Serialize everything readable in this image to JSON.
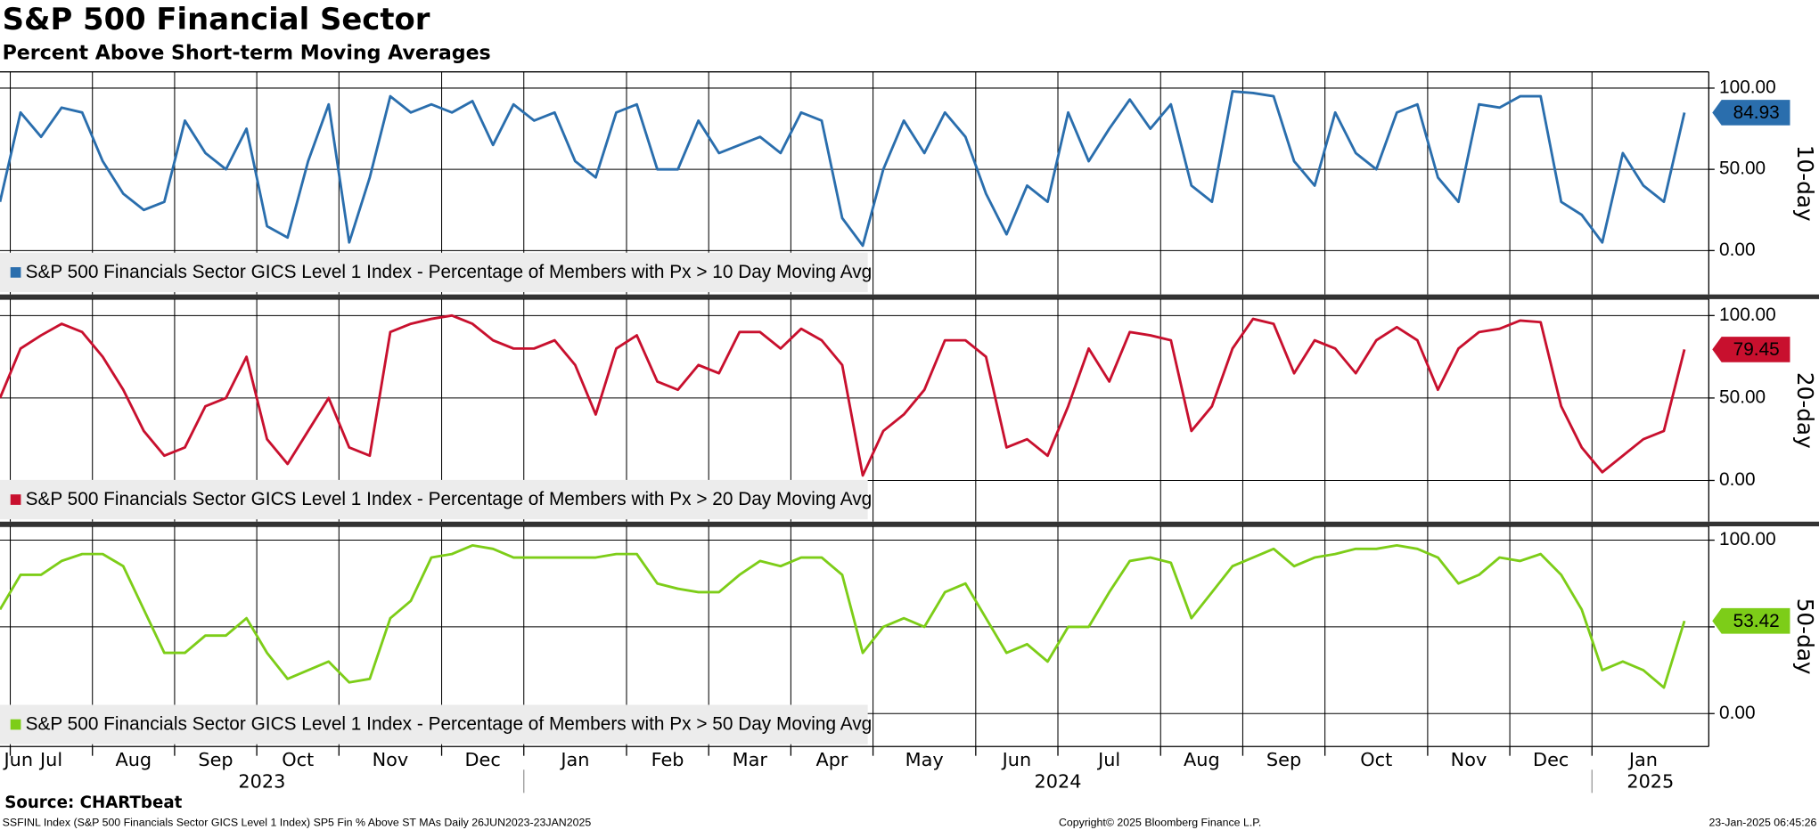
{
  "title": "S&P 500 Financial Sector",
  "subtitle": "Percent Above Short-term Moving Averages",
  "source": "Source: CHARTbeat",
  "footer": {
    "left": "SSFINL Index (S&P 500 Financials Sector GICS Level 1 Index) SP5 Fin % Above ST MAs  Daily 26JUN2023-23JAN2025",
    "center": "Copyright© 2025 Bloomberg Finance L.P.",
    "right": "23-Jan-2025 06:45:26"
  },
  "chart_data": [
    {
      "type": "line",
      "axis_title": "10-day",
      "ylim": [
        -27,
        110
      ],
      "yticks": [
        {
          "value": 0,
          "label": "0.00"
        },
        {
          "value": 50,
          "label": "50.00"
        },
        {
          "value": 100,
          "label": "100.00"
        }
      ],
      "grid": true,
      "tag_text_color": "#ffffff",
      "categories": [
        "Jun",
        "Jul",
        "Jul",
        "Jul",
        "Jul",
        "Aug",
        "Aug",
        "Aug",
        "Aug",
        "Sep",
        "Sep",
        "Sep",
        "Sep",
        "Oct",
        "Oct",
        "Oct",
        "Oct",
        "Nov",
        "Nov",
        "Nov",
        "Nov",
        "Nov",
        "Dec",
        "Dec",
        "Dec",
        "Dec",
        "Jan",
        "Jan",
        "Jan",
        "Jan",
        "Jan",
        "Feb",
        "Feb",
        "Feb",
        "Feb",
        "Mar",
        "Mar",
        "Mar",
        "Mar",
        "Apr",
        "Apr",
        "Apr",
        "Apr",
        "May",
        "May",
        "May",
        "May",
        "May",
        "Jun",
        "Jun",
        "Jun",
        "Jun",
        "Jul",
        "Jul",
        "Jul",
        "Jul",
        "Jul",
        "Aug",
        "Aug",
        "Aug",
        "Aug",
        "Sep",
        "Sep",
        "Sep",
        "Sep",
        "Oct",
        "Oct",
        "Oct",
        "Oct",
        "Oct",
        "Nov",
        "Nov",
        "Nov",
        "Nov",
        "Dec",
        "Dec",
        "Dec",
        "Dec",
        "Jan",
        "Jan",
        "Jan",
        "Jan",
        "Jan"
      ],
      "series": [
        {
          "name": "S&P 500 Financials Sector GICS Level 1 Index - Percentage of Members with Px > 10 Day Moving Avg",
          "color": "#2a6ead",
          "values": [
            30,
            85,
            70,
            88,
            85,
            55,
            35,
            25,
            30,
            80,
            60,
            50,
            75,
            15,
            8,
            55,
            90,
            5,
            45,
            95,
            85,
            90,
            85,
            92,
            65,
            90,
            80,
            85,
            55,
            45,
            85,
            90,
            50,
            50,
            80,
            60,
            65,
            70,
            60,
            85,
            80,
            20,
            3,
            50,
            80,
            60,
            85,
            70,
            35,
            10,
            40,
            30,
            85,
            55,
            75,
            93,
            75,
            90,
            40,
            30,
            98,
            97,
            95,
            55,
            40,
            85,
            60,
            50,
            85,
            90,
            45,
            30,
            90,
            88,
            95,
            95,
            30,
            22,
            5,
            60,
            40,
            30,
            84.93
          ]
        }
      ]
    },
    {
      "type": "line",
      "axis_title": "20-day",
      "ylim": [
        -25,
        110
      ],
      "yticks": [
        {
          "value": 0,
          "label": "0.00"
        },
        {
          "value": 50,
          "label": "50.00"
        },
        {
          "value": 100,
          "label": "100.00"
        }
      ],
      "grid": true,
      "tag_text_color": "#ffffff",
      "categories": [
        "Jun",
        "Jul",
        "Jul",
        "Jul",
        "Jul",
        "Aug",
        "Aug",
        "Aug",
        "Aug",
        "Sep",
        "Sep",
        "Sep",
        "Sep",
        "Oct",
        "Oct",
        "Oct",
        "Oct",
        "Nov",
        "Nov",
        "Nov",
        "Nov",
        "Nov",
        "Dec",
        "Dec",
        "Dec",
        "Dec",
        "Jan",
        "Jan",
        "Jan",
        "Jan",
        "Jan",
        "Feb",
        "Feb",
        "Feb",
        "Feb",
        "Mar",
        "Mar",
        "Mar",
        "Mar",
        "Apr",
        "Apr",
        "Apr",
        "Apr",
        "May",
        "May",
        "May",
        "May",
        "May",
        "Jun",
        "Jun",
        "Jun",
        "Jun",
        "Jul",
        "Jul",
        "Jul",
        "Jul",
        "Jul",
        "Aug",
        "Aug",
        "Aug",
        "Aug",
        "Sep",
        "Sep",
        "Sep",
        "Sep",
        "Oct",
        "Oct",
        "Oct",
        "Oct",
        "Oct",
        "Nov",
        "Nov",
        "Nov",
        "Nov",
        "Dec",
        "Dec",
        "Dec",
        "Dec",
        "Jan",
        "Jan",
        "Jan",
        "Jan",
        "Jan"
      ],
      "series": [
        {
          "name": "S&P 500 Financials Sector GICS Level 1 Index - Percentage of Members with Px > 20 Day Moving Avg",
          "color": "#c8102e",
          "values": [
            50,
            80,
            88,
            95,
            90,
            75,
            55,
            30,
            15,
            20,
            45,
            50,
            75,
            25,
            10,
            30,
            50,
            20,
            15,
            90,
            95,
            98,
            100,
            95,
            85,
            80,
            80,
            85,
            70,
            40,
            80,
            88,
            60,
            55,
            70,
            65,
            90,
            90,
            80,
            92,
            85,
            70,
            3,
            30,
            40,
            55,
            85,
            85,
            75,
            20,
            25,
            15,
            45,
            80,
            60,
            90,
            88,
            85,
            30,
            45,
            80,
            98,
            95,
            65,
            85,
            80,
            65,
            85,
            93,
            85,
            55,
            80,
            90,
            92,
            97,
            96,
            45,
            20,
            5,
            15,
            25,
            30,
            79.45
          ]
        }
      ]
    },
    {
      "type": "line",
      "axis_title": "50-day",
      "ylim": [
        -19,
        108
      ],
      "yticks": [
        {
          "value": 0,
          "label": "0.00"
        },
        {
          "value": 50,
          "label": "50.00"
        },
        {
          "value": 100,
          "label": "100.00"
        }
      ],
      "grid": true,
      "tag_text_color": "#000000",
      "categories": [
        "Jun",
        "Jul",
        "Jul",
        "Jul",
        "Jul",
        "Aug",
        "Aug",
        "Aug",
        "Aug",
        "Sep",
        "Sep",
        "Sep",
        "Sep",
        "Oct",
        "Oct",
        "Oct",
        "Oct",
        "Nov",
        "Nov",
        "Nov",
        "Nov",
        "Nov",
        "Dec",
        "Dec",
        "Dec",
        "Dec",
        "Jan",
        "Jan",
        "Jan",
        "Jan",
        "Jan",
        "Feb",
        "Feb",
        "Feb",
        "Feb",
        "Mar",
        "Mar",
        "Mar",
        "Mar",
        "Apr",
        "Apr",
        "Apr",
        "Apr",
        "May",
        "May",
        "May",
        "May",
        "May",
        "Jun",
        "Jun",
        "Jun",
        "Jun",
        "Jul",
        "Jul",
        "Jul",
        "Jul",
        "Jul",
        "Aug",
        "Aug",
        "Aug",
        "Aug",
        "Sep",
        "Sep",
        "Sep",
        "Sep",
        "Oct",
        "Oct",
        "Oct",
        "Oct",
        "Oct",
        "Nov",
        "Nov",
        "Nov",
        "Nov",
        "Dec",
        "Dec",
        "Dec",
        "Dec",
        "Jan",
        "Jan",
        "Jan",
        "Jan",
        "Jan"
      ],
      "category_groups": [
        "2023",
        "2023",
        "2023",
        "2023",
        "2023",
        "2023",
        "2023",
        "2023",
        "2023",
        "2023",
        "2023",
        "2023",
        "2023",
        "2023",
        "2023",
        "2023",
        "2023",
        "2023",
        "2023",
        "2023",
        "2023",
        "2023",
        "2023",
        "2023",
        "2023",
        "2023",
        "2024",
        "2024",
        "2024",
        "2024",
        "2024",
        "2024",
        "2024",
        "2024",
        "2024",
        "2024",
        "2024",
        "2024",
        "2024",
        "2024",
        "2024",
        "2024",
        "2024",
        "2024",
        "2024",
        "2024",
        "2024",
        "2024",
        "2024",
        "2024",
        "2024",
        "2024",
        "2024",
        "2024",
        "2024",
        "2024",
        "2024",
        "2024",
        "2024",
        "2024",
        "2024",
        "2024",
        "2024",
        "2024",
        "2024",
        "2024",
        "2024",
        "2024",
        "2024",
        "2024",
        "2024",
        "2024",
        "2024",
        "2024",
        "2024",
        "2024",
        "2024",
        "2024",
        "2025",
        "2025",
        "2025",
        "2025",
        "2025"
      ],
      "series": [
        {
          "name": "S&P 500 Financials Sector GICS Level 1 Index - Percentage of Members with Px > 50 Day Moving Avg",
          "color": "#7dcd18",
          "values": [
            60,
            80,
            80,
            88,
            92,
            92,
            85,
            60,
            35,
            35,
            45,
            45,
            55,
            35,
            20,
            25,
            30,
            18,
            20,
            55,
            65,
            90,
            92,
            97,
            95,
            90,
            90,
            90,
            90,
            90,
            92,
            92,
            75,
            72,
            70,
            70,
            80,
            88,
            85,
            90,
            90,
            80,
            35,
            50,
            55,
            50,
            70,
            75,
            55,
            35,
            40,
            30,
            50,
            50,
            70,
            88,
            90,
            87,
            55,
            70,
            85,
            90,
            95,
            85,
            90,
            92,
            95,
            95,
            97,
            95,
            90,
            75,
            80,
            90,
            88,
            92,
            80,
            60,
            25,
            30,
            25,
            15,
            53.42
          ]
        }
      ]
    }
  ]
}
